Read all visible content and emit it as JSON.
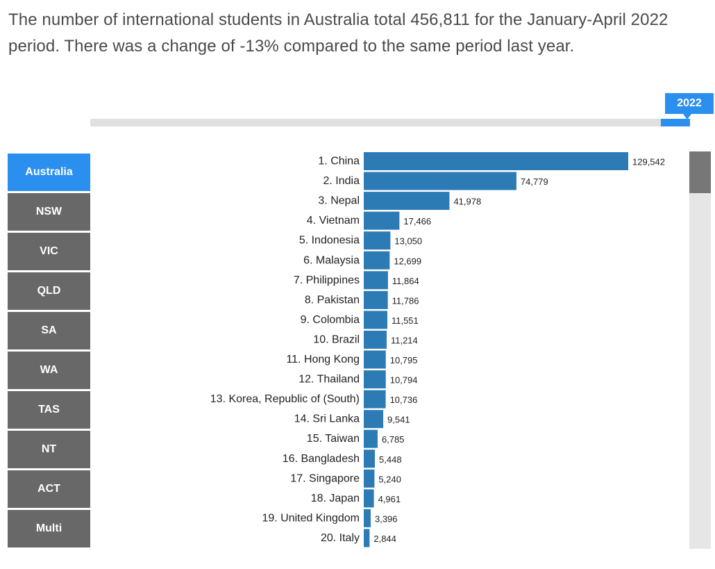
{
  "headline": {
    "line1": "The number of international students in Australia total 456,811 for the January-April 2022",
    "line2": "period. There was a change of -13% compared to the same period last year."
  },
  "timeline": {
    "selected_year": "2022"
  },
  "regions": [
    {
      "label": "Australia",
      "active": true
    },
    {
      "label": "NSW",
      "active": false
    },
    {
      "label": "VIC",
      "active": false
    },
    {
      "label": "QLD",
      "active": false
    },
    {
      "label": "SA",
      "active": false
    },
    {
      "label": "WA",
      "active": false
    },
    {
      "label": "TAS",
      "active": false
    },
    {
      "label": "NT",
      "active": false
    },
    {
      "label": "ACT",
      "active": false
    },
    {
      "label": "Multi",
      "active": false
    }
  ],
  "colors": {
    "bar": "#2c7bb4",
    "accent": "#2b8ff0",
    "button": "#686868"
  },
  "chart_data": {
    "type": "bar",
    "orientation": "horizontal",
    "categories": [
      "1. China",
      "2. India",
      "3. Nepal",
      "4. Vietnam",
      "5. Indonesia",
      "6. Malaysia",
      "7. Philippines",
      "8. Pakistan",
      "9. Colombia",
      "10. Brazil",
      "11. Hong Kong",
      "12. Thailand",
      "13. Korea, Republic of (South)",
      "14. Sri Lanka",
      "15. Taiwan",
      "16. Bangladesh",
      "17. Singapore",
      "18. Japan",
      "19. United Kingdom",
      "20. Italy"
    ],
    "values": [
      129542,
      74779,
      41978,
      17466,
      13050,
      12699,
      11864,
      11786,
      11551,
      11214,
      10795,
      10794,
      10736,
      9541,
      6785,
      5448,
      5240,
      4961,
      3396,
      2844
    ],
    "value_labels": [
      "129,542",
      "74,779",
      "41,978",
      "17,466",
      "13,050",
      "12,699",
      "11,864",
      "11,786",
      "11,551",
      "11,214",
      "10,795",
      "10,794",
      "10,736",
      "9,541",
      "6,785",
      "5,448",
      "5,240",
      "4,961",
      "3,396",
      "2,844"
    ],
    "xlim": [
      0,
      129542
    ],
    "grid": false,
    "title": "",
    "xlabel": "",
    "ylabel": ""
  }
}
